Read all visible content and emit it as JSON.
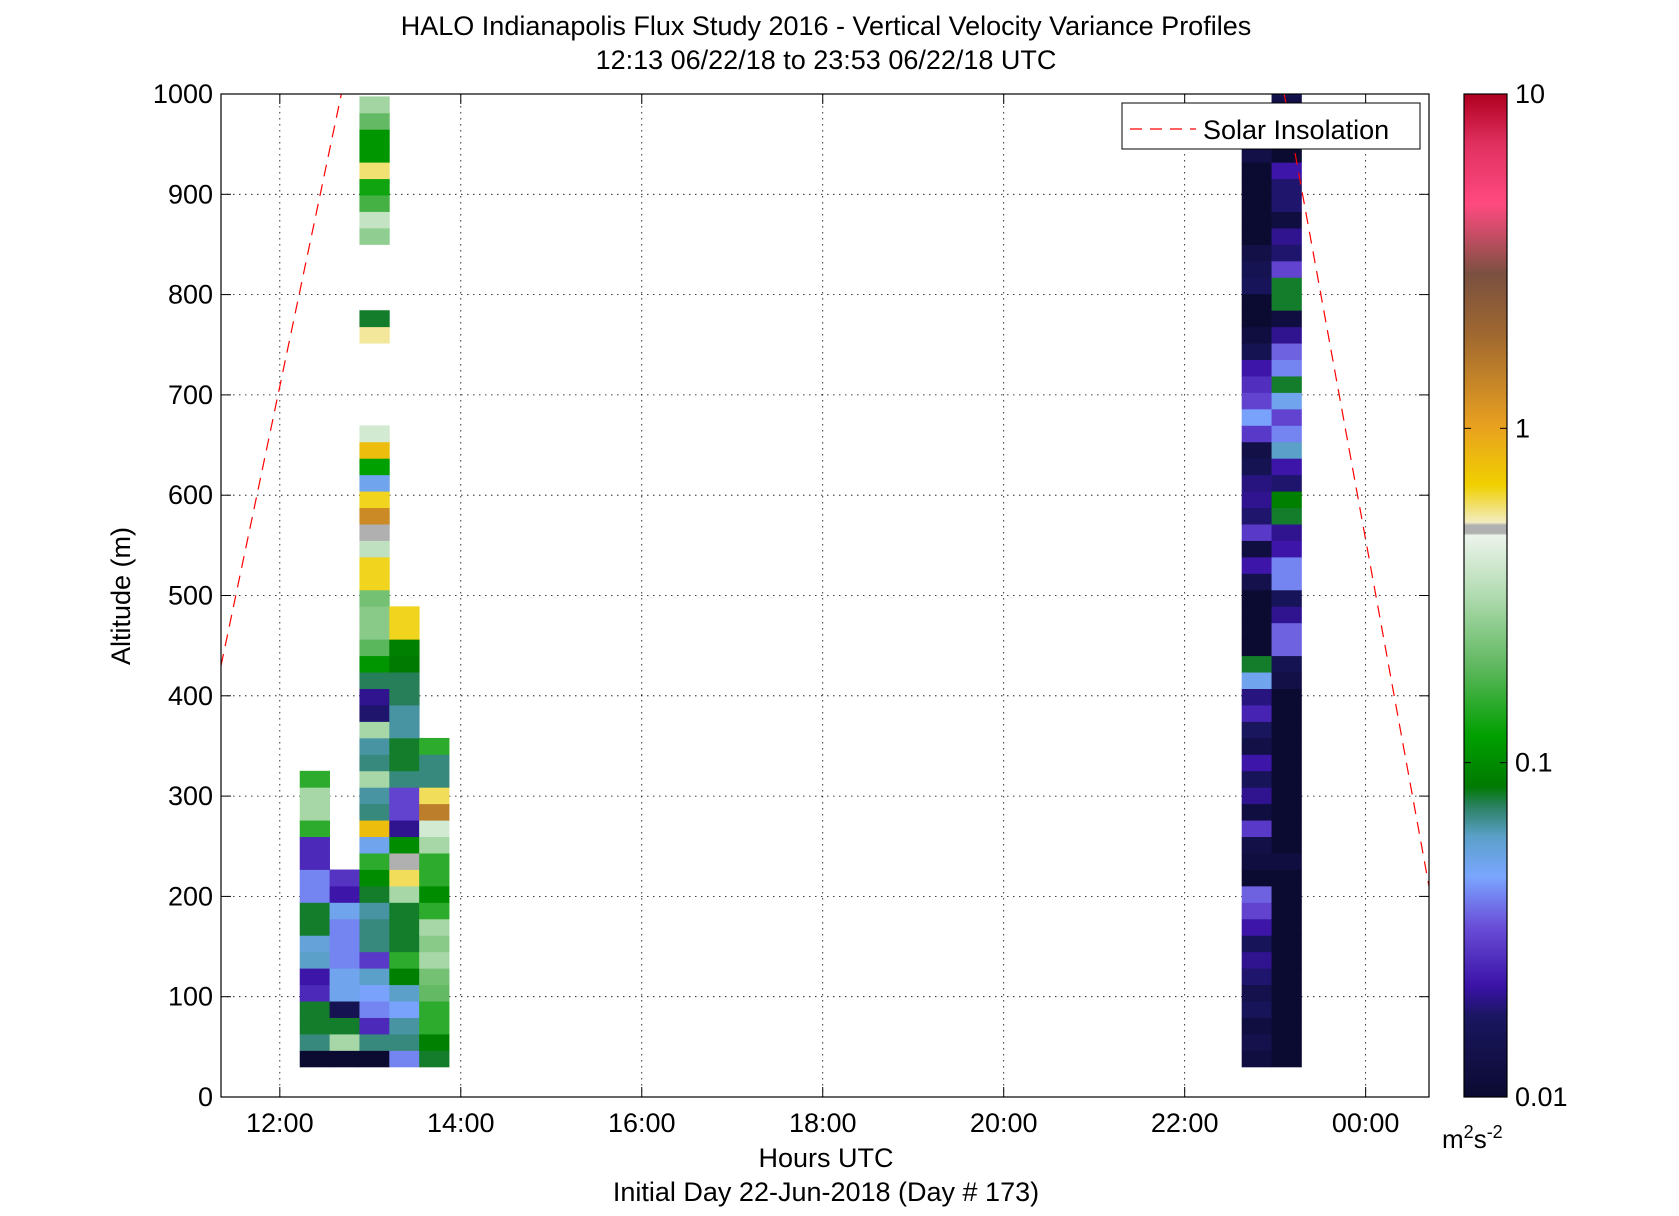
{
  "chart_data": {
    "type": "heatmap",
    "title": "HALO Indianapolis Flux Study 2016 - Vertical Velocity Variance Profiles",
    "subtitle": "12:13 06/22/18 to 23:53 06/22/18  UTC",
    "xlabel": "Hours UTC",
    "xlabel2": "Initial Day 22-Jun-2018 (Day # 173)",
    "ylabel": "Altitude (m)",
    "xlim": [
      11.35,
      24.7
    ],
    "ylim": [
      0,
      1000
    ],
    "x_ticks": [
      12,
      14,
      16,
      18,
      20,
      22,
      24
    ],
    "x_tick_labels": [
      "12:00",
      "14:00",
      "16:00",
      "18:00",
      "20:00",
      "22:00",
      "00:00"
    ],
    "y_ticks": [
      0,
      100,
      200,
      300,
      400,
      500,
      600,
      700,
      800,
      900,
      1000
    ],
    "y_tick_labels": [
      "0",
      "100",
      "200",
      "300",
      "400",
      "500",
      "600",
      "700",
      "800",
      "900",
      "1000"
    ],
    "grid": true,
    "legend": {
      "placement": "top-right",
      "entries": [
        {
          "label": "Solar Insolation",
          "style": "dashed",
          "color": "#ff0000"
        }
      ]
    },
    "colorbar": {
      "scale": "log",
      "range": [
        0.01,
        10
      ],
      "tick_values": [
        0.01,
        0.1,
        1,
        10
      ],
      "tick_labels": [
        "0.01",
        "0.1",
        "1",
        "10"
      ],
      "units": "m2s-2",
      "units_base": "m",
      "units_sup1": "2",
      "units_mid": "s",
      "units_sup2": "-2"
    },
    "bin_height_m": 16.4,
    "solar_insolation": [
      {
        "x": [
          11.35,
          12.68
        ],
        "y": [
          430,
          1000
        ]
      },
      {
        "x": [
          23.1,
          24.7
        ],
        "y": [
          1000,
          210
        ]
      }
    ],
    "columns": [
      {
        "x_start": 12.22,
        "x_end": 12.55,
        "y_start": 30,
        "values": [
          0.01,
          0.07,
          0.08,
          0.08,
          0.025,
          0.022,
          0.06,
          0.055,
          0.08,
          0.08,
          0.04,
          0.04,
          0.025,
          0.025,
          0.15,
          0.3,
          0.3,
          0.15
        ]
      },
      {
        "x_start": 12.55,
        "x_end": 12.88,
        "y_start": 30,
        "values": [
          0.01,
          0.3,
          0.08,
          0.015,
          0.05,
          0.05,
          0.04,
          0.04,
          0.04,
          0.05,
          0.022,
          0.027
        ]
      },
      {
        "x_start": 12.88,
        "x_end": 13.21,
        "y_start": 30,
        "values": [
          0.01,
          0.07,
          0.025,
          0.04,
          0.045,
          0.06,
          0.028,
          0.07,
          0.07,
          0.065,
          0.08,
          0.1,
          0.15,
          0.05,
          0.8,
          0.07,
          0.065,
          0.3,
          0.07,
          0.065,
          0.3,
          0.018,
          0.02,
          0.075,
          0.11,
          0.19,
          0.25,
          0.25,
          0.22,
          0.65,
          0.65,
          0.35,
          0.5,
          1.3,
          0.65,
          0.05,
          0.12,
          0.8,
          0.4,
          null,
          null,
          null,
          null,
          null,
          0.55,
          0.08,
          null,
          null,
          null,
          null,
          0.26,
          0.36,
          0.17,
          0.13,
          0.58,
          0.11,
          0.11,
          0.2,
          0.29
        ]
      },
      {
        "x_start": 13.21,
        "x_end": 13.54,
        "y_start": 30,
        "values": [
          0.04,
          0.07,
          0.065,
          0.045,
          0.06,
          0.09,
          0.15,
          0.08,
          0.08,
          0.08,
          0.3,
          0.6,
          0.5,
          0.1,
          0.02,
          0.03,
          0.03,
          0.07,
          0.08,
          0.08,
          0.065,
          0.065,
          0.075,
          0.075,
          0.085,
          0.09,
          0.65,
          0.65
        ]
      },
      {
        "x_start": 13.54,
        "x_end": 13.87,
        "y_start": 30,
        "values": [
          0.08,
          0.09,
          0.15,
          0.15,
          0.2,
          0.22,
          0.3,
          0.25,
          0.3,
          0.15,
          0.1,
          0.15,
          0.15,
          0.3,
          0.4,
          1.5,
          0.6,
          0.07,
          0.07,
          0.15
        ]
      },
      {
        "x_start": 22.63,
        "x_end": 22.96,
        "y_start": 30,
        "values": [
          0.012,
          0.014,
          0.012,
          0.016,
          0.014,
          0.018,
          0.02,
          0.016,
          0.022,
          0.03,
          0.035,
          0.01,
          0.012,
          0.013,
          0.028,
          0.012,
          0.02,
          0.016,
          0.022,
          0.013,
          0.017,
          0.024,
          0.019,
          0.05,
          0.08,
          0.01,
          0.01,
          0.01,
          0.01,
          0.014,
          0.022,
          0.012,
          0.028,
          0.018,
          0.02,
          0.019,
          0.015,
          0.013,
          0.028,
          0.045,
          0.03,
          0.026,
          0.022,
          0.015,
          0.012,
          0.01,
          0.01,
          0.016,
          0.015,
          0.013,
          0.01,
          0.01,
          0.01,
          0.01,
          0.01,
          0.013,
          0.01,
          0.05
        ]
      },
      {
        "x_start": 22.96,
        "x_end": 23.29,
        "y_start": 30,
        "values": [
          0.01,
          0.01,
          0.01,
          0.01,
          0.01,
          0.01,
          0.01,
          0.01,
          0.01,
          0.01,
          0.01,
          0.01,
          0.012,
          0.01,
          0.01,
          0.01,
          0.01,
          0.01,
          0.01,
          0.01,
          0.01,
          0.01,
          0.01,
          0.013,
          0.015,
          0.035,
          0.035,
          0.02,
          0.016,
          0.04,
          0.04,
          0.022,
          0.02,
          0.08,
          0.09,
          0.018,
          0.022,
          0.06,
          0.04,
          0.03,
          0.05,
          0.08,
          0.04,
          0.035,
          0.02,
          0.012,
          0.08,
          0.08,
          0.03,
          0.018,
          0.02,
          0.012,
          0.018,
          0.018,
          0.022,
          0.01,
          0.012,
          0.012,
          0.013,
          0.015
        ]
      }
    ]
  }
}
